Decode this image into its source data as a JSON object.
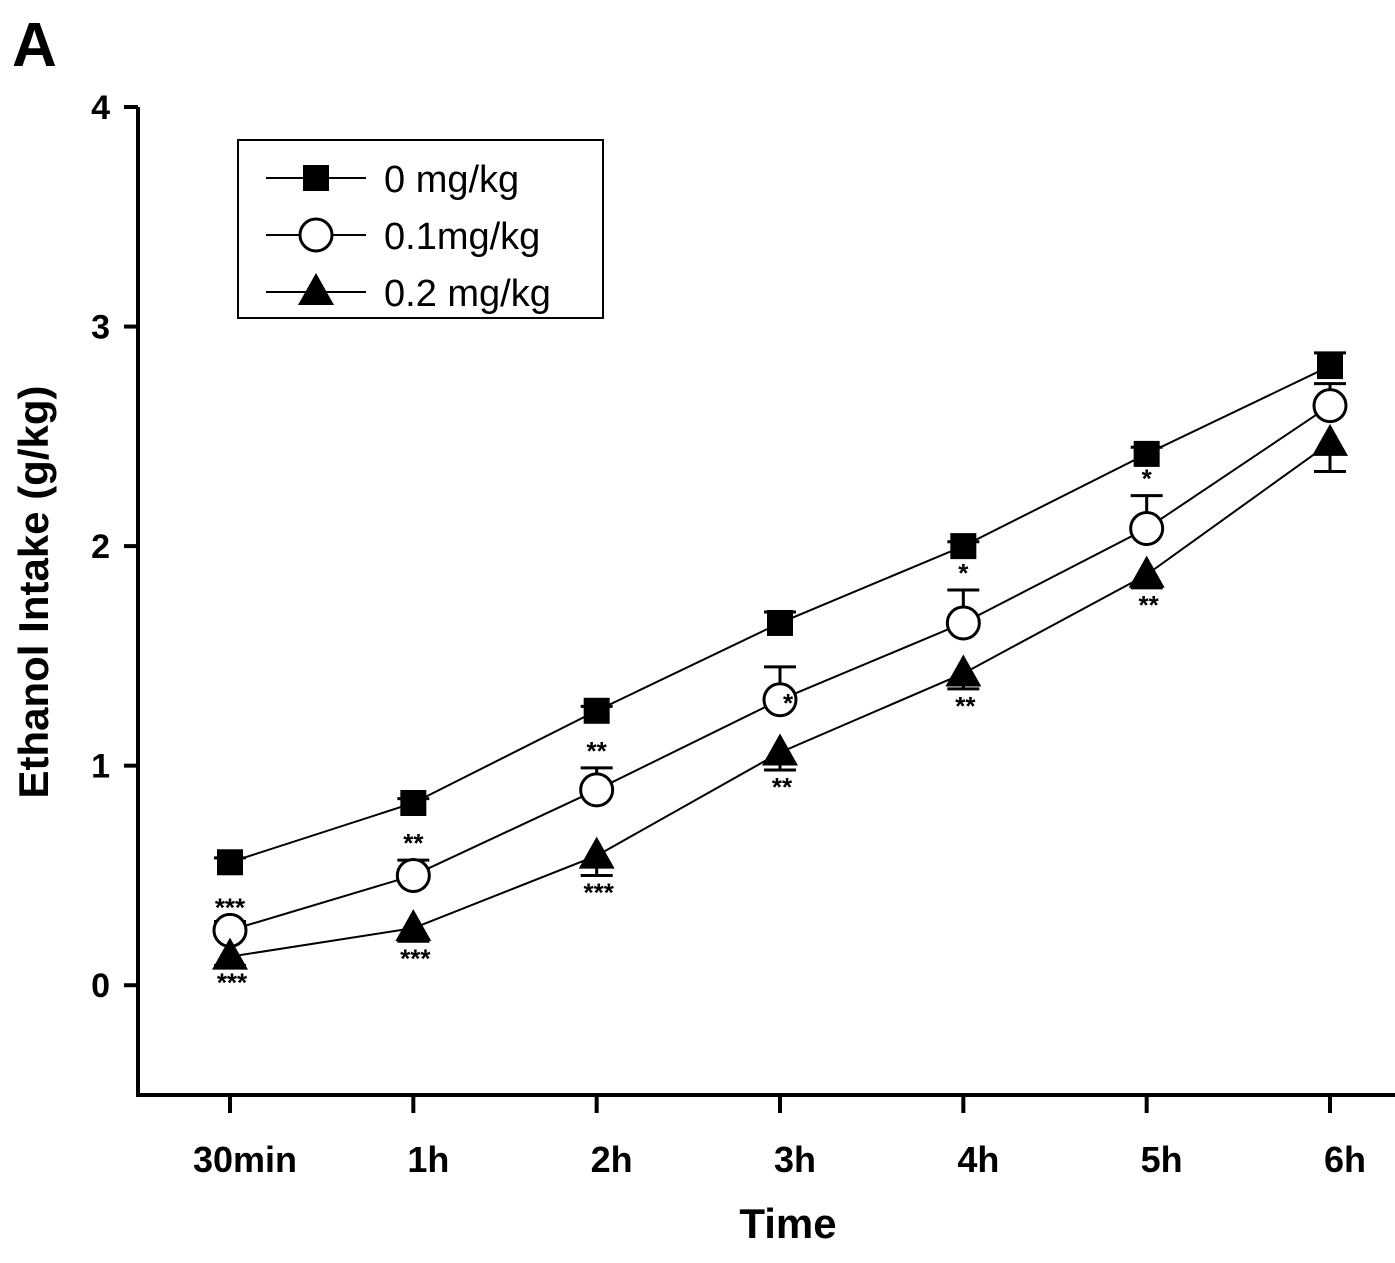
{
  "panel_label": "A",
  "chart_data": {
    "type": "line",
    "title": "",
    "xlabel": "Time",
    "ylabel": "Ethanol Intake (g/kg)",
    "categories": [
      "30min",
      "1h",
      "2h",
      "3h",
      "4h",
      "5h",
      "6h"
    ],
    "ylim": [
      -0.5,
      4
    ],
    "yticks": [
      0,
      1,
      2,
      3,
      4
    ],
    "grid": false,
    "legend_position": "top-left",
    "series": [
      {
        "name": "0 mg/kg",
        "marker": "filled-square",
        "values": [
          0.56,
          0.83,
          1.25,
          1.65,
          2.0,
          2.42,
          2.82
        ],
        "error": [
          0.02,
          0.02,
          0.02,
          0.05,
          0.02,
          0.03,
          0.06
        ],
        "significance": [
          "",
          "",
          "",
          "",
          "",
          "",
          ""
        ]
      },
      {
        "name": "0.1mg/kg",
        "marker": "open-circle",
        "values": [
          0.25,
          0.5,
          0.89,
          1.3,
          1.65,
          2.08,
          2.64
        ],
        "error": [
          0.04,
          0.07,
          0.1,
          0.15,
          0.15,
          0.15,
          0.1
        ],
        "significance": [
          "***",
          "**",
          "**",
          "*",
          "*",
          "*",
          ""
        ]
      },
      {
        "name": "0.2 mg/kg",
        "marker": "filled-triangle",
        "values": [
          0.13,
          0.26,
          0.59,
          1.06,
          1.42,
          1.87,
          2.47
        ],
        "error": [
          0.04,
          0.06,
          0.09,
          0.08,
          0.07,
          0.06,
          0.13
        ],
        "significance": [
          "***",
          "***",
          "***",
          "**",
          "**",
          "**",
          ""
        ]
      }
    ]
  }
}
